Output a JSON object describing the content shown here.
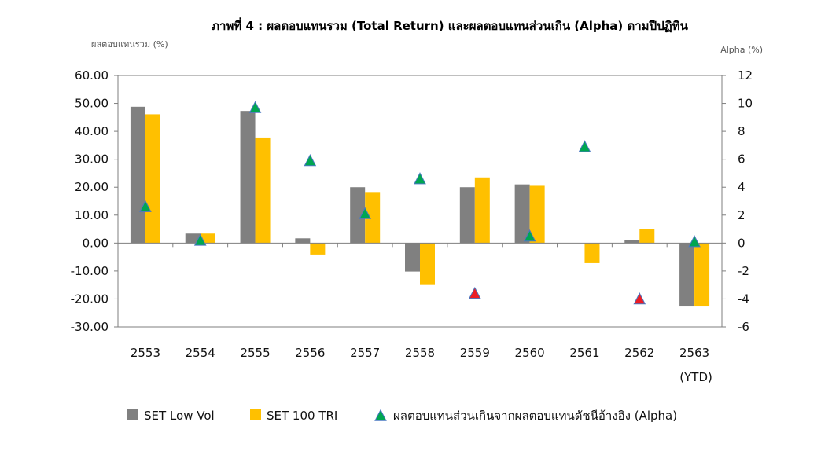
{
  "chart_data": {
    "type": "bar",
    "title": "ภาพที่ 4 : ผลตอบแทนรวม (Total Return) และผลตอบแทนส่วนเกิน (Alpha) ตามปีปฏิทิน",
    "ylabel_left": "ผลตอบแทนรวม (%)",
    "ylabel_right": "Alpha (%)",
    "categories": [
      "2553",
      "2554",
      "2555",
      "2556",
      "2557",
      "2558",
      "2559",
      "2560",
      "2561",
      "2562",
      "2563"
    ],
    "category_sublabels": [
      "",
      "",
      "",
      "",
      "",
      "",
      "",
      "",
      "",
      "",
      "(YTD)"
    ],
    "ylim_left": [
      -30,
      60
    ],
    "yticks_left": [
      "60.00",
      "50.00",
      "40.00",
      "30.00",
      "20.00",
      "10.00",
      "0.00",
      "-10.00",
      "-20.00",
      "-30.00"
    ],
    "ylim_right": [
      -6,
      12
    ],
    "yticks_right": [
      "12",
      "10",
      "8",
      "6",
      "4",
      "2",
      "0",
      "-2",
      "-4",
      "-6"
    ],
    "series": [
      {
        "name": "SET Low Vol",
        "type": "bar",
        "color": "#808080",
        "values": [
          48.8,
          3.4,
          47.3,
          1.7,
          20.0,
          -10.2,
          20.0,
          21.0,
          0.0,
          1.1,
          -22.7
        ]
      },
      {
        "name": "SET 100 TRI",
        "type": "bar",
        "color": "#FFC000",
        "values": [
          46.1,
          3.4,
          37.8,
          -4.1,
          18.0,
          -15.0,
          23.5,
          20.5,
          -7.2,
          5.0,
          -22.7
        ]
      },
      {
        "name": "ผลตอบแทนส่วนเกินจากผลตอบแทนดัชนีอ้างอิง (Alpha)",
        "type": "marker",
        "axis": "right",
        "color_positive": "#00A651",
        "color_negative": "#ED1C24",
        "values": [
          2.6,
          0.2,
          9.7,
          5.9,
          2.1,
          4.6,
          -3.6,
          0.5,
          6.9,
          -4.0,
          0.1
        ]
      }
    ],
    "legend_position": "bottom",
    "grid": false
  }
}
